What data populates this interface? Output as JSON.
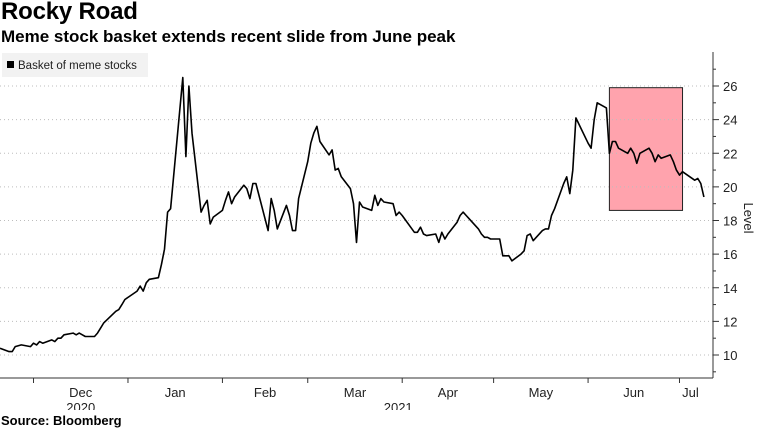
{
  "header": {
    "title": "Rocky Road",
    "subtitle": "Meme stock basket extends recent slide from June peak"
  },
  "footer": {
    "source": "Source: Bloomberg"
  },
  "chart_data": {
    "type": "line",
    "title": "Rocky Road",
    "subtitle": "Meme stock basket extends recent slide from June peak",
    "ylabel": "Level",
    "ylim": [
      9,
      27
    ],
    "yticks": [
      10,
      12,
      14,
      16,
      18,
      20,
      22,
      24,
      26
    ],
    "y_axis_side": "right",
    "grid": "horizontal dotted",
    "legend": {
      "position": "top-left",
      "entries": [
        "Basket of meme stocks"
      ]
    },
    "x_month_labels": [
      "Dec",
      "Jan",
      "Feb",
      "Mar",
      "Apr",
      "May",
      "Jun",
      "Jul"
    ],
    "x_year_labels": [
      "2020",
      "2021"
    ],
    "highlight": {
      "x_start": "2021-06-08",
      "x_end": "2021-07-02",
      "y_start": 18.6,
      "y_end": 25.9,
      "color": "#ff8c99"
    },
    "series": [
      {
        "name": "Basket of meme stocks",
        "color": "#000000",
        "points": [
          [
            "2020-11-20",
            10.4
          ],
          [
            "2020-11-23",
            10.2
          ],
          [
            "2020-11-24",
            10.2
          ],
          [
            "2020-11-25",
            10.5
          ],
          [
            "2020-11-27",
            10.6
          ],
          [
            "2020-11-30",
            10.5
          ],
          [
            "2020-12-01",
            10.7
          ],
          [
            "2020-12-02",
            10.6
          ],
          [
            "2020-12-03",
            10.8
          ],
          [
            "2020-12-04",
            10.7
          ],
          [
            "2020-12-07",
            10.9
          ],
          [
            "2020-12-08",
            10.8
          ],
          [
            "2020-12-09",
            11.0
          ],
          [
            "2020-12-10",
            11.0
          ],
          [
            "2020-12-11",
            11.2
          ],
          [
            "2020-12-14",
            11.3
          ],
          [
            "2020-12-15",
            11.2
          ],
          [
            "2020-12-16",
            11.3
          ],
          [
            "2020-12-17",
            11.2
          ],
          [
            "2020-12-18",
            11.1
          ],
          [
            "2020-12-21",
            11.1
          ],
          [
            "2020-12-22",
            11.3
          ],
          [
            "2020-12-23",
            11.6
          ],
          [
            "2020-12-24",
            11.9
          ],
          [
            "2020-12-28",
            12.6
          ],
          [
            "2020-12-29",
            12.7
          ],
          [
            "2020-12-30",
            13.0
          ],
          [
            "2020-12-31",
            13.3
          ],
          [
            "2021-01-04",
            13.8
          ],
          [
            "2021-01-05",
            14.1
          ],
          [
            "2021-01-06",
            13.8
          ],
          [
            "2021-01-07",
            14.3
          ],
          [
            "2021-01-08",
            14.5
          ],
          [
            "2021-01-11",
            14.6
          ],
          [
            "2021-01-12",
            15.4
          ],
          [
            "2021-01-13",
            16.3
          ],
          [
            "2021-01-14",
            18.5
          ],
          [
            "2021-01-15",
            18.7
          ],
          [
            "2021-01-19",
            26.5
          ],
          [
            "2021-01-20",
            21.8
          ],
          [
            "2021-01-21",
            26.0
          ],
          [
            "2021-01-22",
            23.2
          ],
          [
            "2021-01-25",
            18.5
          ],
          [
            "2021-01-26",
            18.9
          ],
          [
            "2021-01-27",
            19.2
          ],
          [
            "2021-01-28",
            17.8
          ],
          [
            "2021-01-29",
            18.2
          ],
          [
            "2021-02-01",
            18.6
          ],
          [
            "2021-02-02",
            19.2
          ],
          [
            "2021-02-03",
            19.7
          ],
          [
            "2021-02-04",
            19.0
          ],
          [
            "2021-02-05",
            19.4
          ],
          [
            "2021-02-08",
            20.1
          ],
          [
            "2021-02-09",
            19.9
          ],
          [
            "2021-02-10",
            19.3
          ],
          [
            "2021-02-11",
            20.2
          ],
          [
            "2021-02-12",
            20.2
          ],
          [
            "2021-02-16",
            17.4
          ],
          [
            "2021-02-17",
            19.3
          ],
          [
            "2021-02-18",
            18.6
          ],
          [
            "2021-02-19",
            17.5
          ],
          [
            "2021-02-22",
            18.9
          ],
          [
            "2021-02-23",
            18.3
          ],
          [
            "2021-02-24",
            17.4
          ],
          [
            "2021-02-25",
            17.4
          ],
          [
            "2021-02-26",
            19.3
          ],
          [
            "2021-03-01",
            21.5
          ],
          [
            "2021-03-02",
            22.6
          ],
          [
            "2021-03-03",
            23.2
          ],
          [
            "2021-03-04",
            23.6
          ],
          [
            "2021-03-05",
            22.7
          ],
          [
            "2021-03-08",
            21.9
          ],
          [
            "2021-03-09",
            22.2
          ],
          [
            "2021-03-10",
            21.0
          ],
          [
            "2021-03-11",
            21.1
          ],
          [
            "2021-03-12",
            20.6
          ],
          [
            "2021-03-15",
            19.9
          ],
          [
            "2021-03-16",
            19.0
          ],
          [
            "2021-03-17",
            16.7
          ],
          [
            "2021-03-18",
            19.1
          ],
          [
            "2021-03-19",
            18.8
          ],
          [
            "2021-03-22",
            18.6
          ],
          [
            "2021-03-23",
            19.5
          ],
          [
            "2021-03-24",
            18.9
          ],
          [
            "2021-03-25",
            19.3
          ],
          [
            "2021-03-26",
            19.1
          ],
          [
            "2021-03-29",
            19.0
          ],
          [
            "2021-03-30",
            18.3
          ],
          [
            "2021-03-31",
            18.5
          ],
          [
            "2021-04-01",
            18.3
          ],
          [
            "2021-04-05",
            17.3
          ],
          [
            "2021-04-06",
            17.3
          ],
          [
            "2021-04-07",
            17.6
          ],
          [
            "2021-04-08",
            17.2
          ],
          [
            "2021-04-09",
            17.1
          ],
          [
            "2021-04-12",
            17.2
          ],
          [
            "2021-04-13",
            16.7
          ],
          [
            "2021-04-14",
            17.3
          ],
          [
            "2021-04-15",
            16.9
          ],
          [
            "2021-04-16",
            17.2
          ],
          [
            "2021-04-19",
            17.9
          ],
          [
            "2021-04-20",
            18.3
          ],
          [
            "2021-04-21",
            18.5
          ],
          [
            "2021-04-22",
            18.3
          ],
          [
            "2021-04-23",
            18.1
          ],
          [
            "2021-04-26",
            17.5
          ],
          [
            "2021-04-27",
            17.2
          ],
          [
            "2021-04-28",
            17.0
          ],
          [
            "2021-04-29",
            17.0
          ],
          [
            "2021-04-30",
            16.9
          ],
          [
            "2021-05-03",
            16.9
          ],
          [
            "2021-05-04",
            15.9
          ],
          [
            "2021-05-05",
            15.9
          ],
          [
            "2021-05-06",
            15.9
          ],
          [
            "2021-05-07",
            15.6
          ],
          [
            "2021-05-10",
            16.0
          ],
          [
            "2021-05-11",
            16.2
          ],
          [
            "2021-05-12",
            17.1
          ],
          [
            "2021-05-13",
            17.2
          ],
          [
            "2021-05-14",
            16.8
          ],
          [
            "2021-05-17",
            17.4
          ],
          [
            "2021-05-18",
            17.5
          ],
          [
            "2021-05-19",
            17.5
          ],
          [
            "2021-05-20",
            18.3
          ],
          [
            "2021-05-21",
            18.7
          ],
          [
            "2021-05-24",
            20.2
          ],
          [
            "2021-05-25",
            20.6
          ],
          [
            "2021-05-26",
            19.6
          ],
          [
            "2021-05-27",
            21.0
          ],
          [
            "2021-05-28",
            24.1
          ],
          [
            "2021-06-01",
            22.6
          ],
          [
            "2021-06-02",
            22.3
          ],
          [
            "2021-06-03",
            24.0
          ],
          [
            "2021-06-04",
            25.0
          ],
          [
            "2021-06-07",
            24.7
          ],
          [
            "2021-06-08",
            22.0
          ],
          [
            "2021-06-09",
            22.7
          ],
          [
            "2021-06-10",
            22.7
          ],
          [
            "2021-06-11",
            22.3
          ],
          [
            "2021-06-14",
            22.0
          ],
          [
            "2021-06-15",
            22.3
          ],
          [
            "2021-06-16",
            22.0
          ],
          [
            "2021-06-17",
            21.4
          ],
          [
            "2021-06-18",
            22.0
          ],
          [
            "2021-06-21",
            22.3
          ],
          [
            "2021-06-22",
            22.0
          ],
          [
            "2021-06-23",
            21.5
          ],
          [
            "2021-06-24",
            21.9
          ],
          [
            "2021-06-25",
            21.7
          ],
          [
            "2021-06-28",
            21.9
          ],
          [
            "2021-06-29",
            21.5
          ],
          [
            "2021-06-30",
            21.0
          ],
          [
            "2021-07-01",
            20.7
          ],
          [
            "2021-07-02",
            20.9
          ],
          [
            "2021-07-06",
            20.4
          ],
          [
            "2021-07-07",
            20.5
          ],
          [
            "2021-07-08",
            20.2
          ],
          [
            "2021-07-09",
            19.4
          ]
        ]
      }
    ]
  }
}
